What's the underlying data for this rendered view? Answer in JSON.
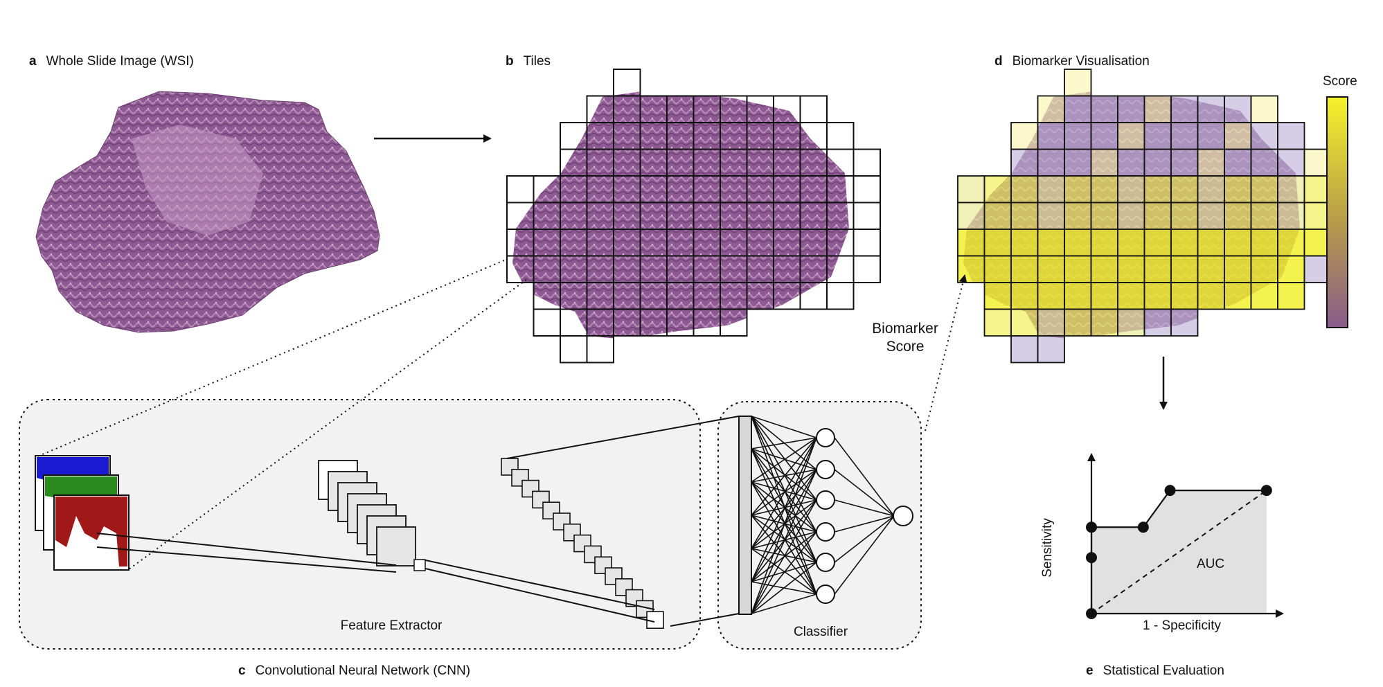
{
  "panels": {
    "a": {
      "letter": "a",
      "title": "Whole Slide Image (WSI)"
    },
    "b": {
      "letter": "b",
      "title": "Tiles"
    },
    "c": {
      "letter": "c",
      "title": "Convolutional Neural Network (CNN)"
    },
    "d": {
      "letter": "d",
      "title": "Biomarker Visualisation"
    },
    "e": {
      "letter": "e",
      "title": "Statistical Evaluation"
    }
  },
  "cnn": {
    "feature_extractor": "Feature Extractor",
    "classifier": "Classifier"
  },
  "biomarker": {
    "line1": "Biomarker",
    "line2": "Score"
  },
  "colorbar": {
    "label": "Score",
    "colors": {
      "high": "#f4f22a",
      "low": "#8a5c8c"
    }
  },
  "roc": {
    "ylabel": "Sensitivity",
    "xlabel": "1 - Specificity",
    "auc": "AUC"
  },
  "colors": {
    "tissue": "#8e5a93",
    "tissue_light": "#b98cb8",
    "grid": "#111111",
    "panel_bg": "#f2f2f2",
    "auc_fill": "#e1e1e1",
    "score_high": "#eeee20",
    "score_low": "#a99bc7"
  }
}
